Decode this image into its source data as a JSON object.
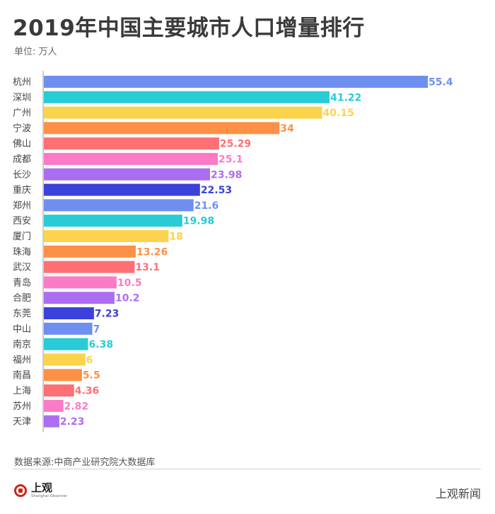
{
  "title": "2019年中国主要城市人口增量排行",
  "unit": "单位: 万人",
  "source": "数据来源:中商产业研究院大数据库",
  "logo": {
    "cn": "上观",
    "en": "Shanghai Observer"
  },
  "brand": "上观新闻",
  "colors": [
    "#6f8ff0",
    "#27ccd6",
    "#fcd34d",
    "#fd9047",
    "#fe7074",
    "#fc7bc6",
    "#ab6ef0",
    "#3b42d9"
  ],
  "chart_data": {
    "type": "bar",
    "orientation": "horizontal",
    "title": "2019年中国主要城市人口增量排行",
    "unit": "万人",
    "categories": [
      "杭州",
      "深圳",
      "广州",
      "宁波",
      "佛山",
      "成都",
      "长沙",
      "重庆",
      "郑州",
      "西安",
      "厦门",
      "珠海",
      "武汉",
      "青岛",
      "合肥",
      "东莞",
      "中山",
      "南京",
      "福州",
      "南昌",
      "上海",
      "苏州",
      "天津"
    ],
    "values": [
      55.4,
      41.22,
      40.15,
      34,
      25.29,
      25.1,
      23.98,
      22.53,
      21.6,
      19.98,
      18,
      13.26,
      13.1,
      10.5,
      10.2,
      7.23,
      7,
      6.38,
      6,
      5.5,
      4.36,
      2.82,
      2.23
    ],
    "labels": [
      "55.4",
      "41.22",
      "40.15",
      "34",
      "25.29",
      "25.1",
      "23.98",
      "22.53",
      "21.6",
      "19.98",
      "18",
      "13.26",
      "13.1",
      "10.5",
      "10.2",
      "7.23",
      "7",
      "6.38",
      "6",
      "5.5",
      "4.36",
      "2.82",
      "2.23"
    ],
    "xlim": [
      0,
      55.4
    ],
    "grid": false,
    "legend": "none"
  }
}
